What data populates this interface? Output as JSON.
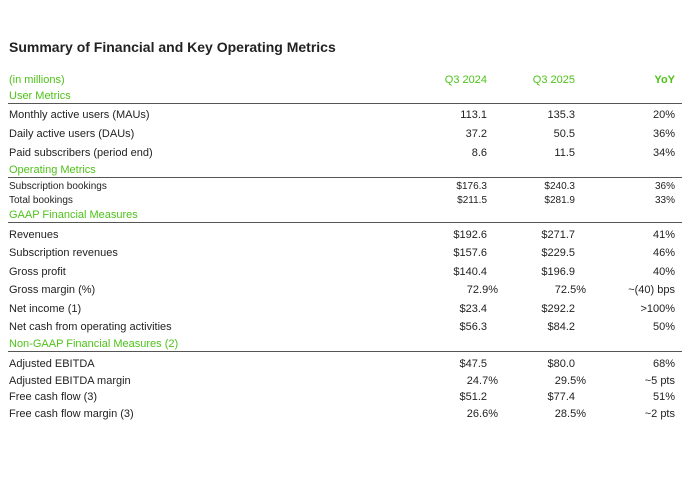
{
  "title": "Summary of Financial and Key Operating Metrics",
  "header": [
    "(in millions)",
    "Q3 2024",
    "Q3 2025",
    "YoY"
  ],
  "sections": [
    {
      "title": "User Metrics",
      "rows": [
        [
          "Monthly active users (MAUs)",
          "113.1",
          "135.3",
          "20%"
        ],
        [
          "Daily active users (DAUs)",
          "37.2",
          "50.5",
          "36%"
        ],
        [
          "Paid subscribers (period end)",
          "8.6",
          "11.5",
          "34%"
        ]
      ]
    },
    {
      "title": "Operating Metrics",
      "rows": [
        [
          "Subscription bookings",
          "$176.3",
          "$240.3",
          "36%"
        ],
        [
          "Total bookings",
          "$211.5",
          "$281.9",
          "33%"
        ]
      ]
    },
    {
      "title": "GAAP Financial Measures",
      "rows": [
        [
          "Revenues",
          "$192.6",
          "$271.7",
          "41%"
        ],
        [
          "Subscription revenues",
          "$157.6",
          "$229.5",
          "46%"
        ],
        [
          "Gross profit",
          "$140.4",
          "$196.9",
          "40%"
        ],
        [
          "Gross margin (%)",
          "72.9%",
          "72.5%",
          "~(40) bps"
        ],
        [
          "Net income (1)",
          "$23.4",
          "$292.2",
          ">100%"
        ],
        [
          "Net cash from operating activities",
          "$56.3",
          "$84.2",
          "50%"
        ]
      ]
    },
    {
      "title": "Non-GAAP Financial Measures (2)",
      "rows": [
        [
          "Adjusted EBITDA",
          "$47.5",
          "$80.0",
          "68%"
        ],
        [
          "Adjusted EBITDA margin",
          "24.7%",
          "29.5%",
          "~5 pts"
        ],
        [
          "Free cash flow (3)",
          "$51.2",
          "$77.4",
          "51%"
        ],
        [
          "Free cash flow margin (3)",
          "26.6%",
          "28.5%",
          "~2 pts"
        ]
      ]
    }
  ]
}
